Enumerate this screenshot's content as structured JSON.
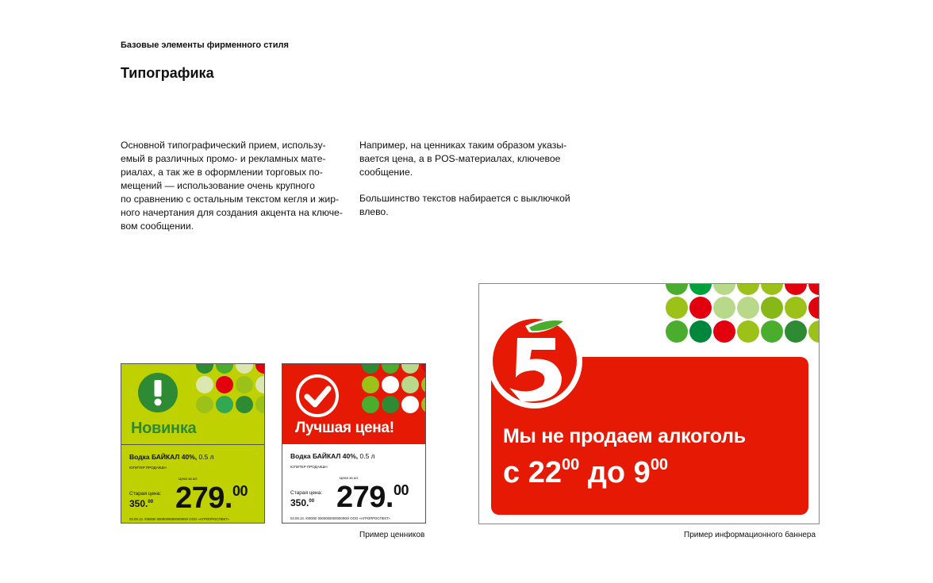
{
  "header": {
    "section": "Базовые элементы фирменного стиля",
    "title": "Типографика"
  },
  "text": {
    "left": "Основной типографический прием, использу-\nемый в различных промо- и рекламных мате-\nриалах, а так же в оформлении торговых по-\nмещений — использование очень крупного\nпо сравнению с остальным текстом кегля и жир-\nного начертания для создания акцента на ключе-\nвом сообщении.",
    "right1": "Например, на ценниках таким образом указы-\nвается цена, а в POS-материалах, ключевое\nсообщение.",
    "right2": "Большинство текстов набирается с выключкой\nвлево."
  },
  "colors": {
    "red": "#e61a04",
    "lime": "#bfd100",
    "dark_green": "#2e8b34",
    "green": "#4aad2e",
    "light_green": "#b8d98a"
  },
  "tags": [
    {
      "icon": "exclamation-icon",
      "heading": "Новинка",
      "product_bold": "Водка БАЙКАЛ 40%,",
      "product_volume": " 0.5 л",
      "maker": "ЮПИТЕР ПРОДАКШН",
      "per_unit": "Цена за шт.",
      "old_label": "Старая цена:",
      "old_price": "350.",
      "old_cents": "00",
      "price": "279.",
      "cents": "00",
      "footer": "03.09.13. /00000/ 0000000000000000/ ООО «АГРОПРОСПЕКТ»"
    },
    {
      "icon": "checkmark-icon",
      "heading": "Лучшая цена!",
      "product_bold": "Водка БАЙКАЛ 40%,",
      "product_volume": " 0.5 л",
      "maker": "ЮПИТЕР ПРОДАКШН",
      "per_unit": "Цена за шт.",
      "old_label": "Старая цена:",
      "old_price": "350.",
      "old_cents": "00",
      "price": "279.",
      "cents": "00",
      "footer": "03.09.13. /00000/ 0000000000000000/ ООО «АГРОПРОСПЕКТ»"
    }
  ],
  "tags_caption": "Пример  ценников",
  "banner": {
    "logo": "Пятёрочка 5",
    "line1": "Мы не продаем алкоголь",
    "line2_prefix": "с 22",
    "line2_sup1": "00",
    "line2_mid": " до 9",
    "line2_sup2": "00"
  },
  "banner_caption": "Пример  информационного баннера"
}
